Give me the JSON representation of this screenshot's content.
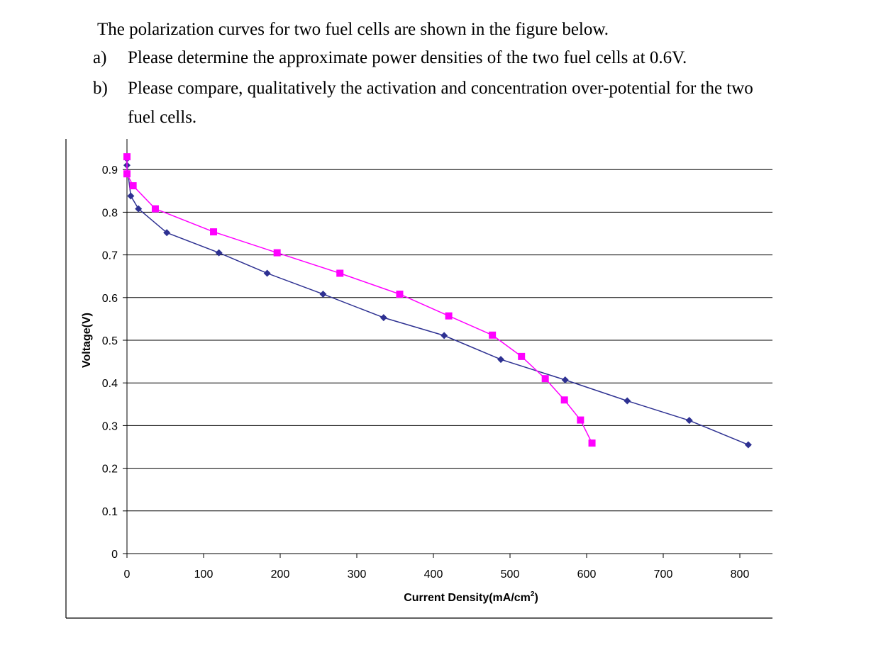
{
  "question": {
    "intro": "The polarization curves for two fuel cells are shown in the figure below.",
    "parts": [
      {
        "label": "a)",
        "text": "Please determine the approximate power densities of the two fuel cells at 0.6V."
      },
      {
        "label": "b)",
        "text": "Please compare, qualitatively the activation and concentration over-potential for the two",
        "continuation": "fuel cells."
      }
    ]
  },
  "chart_data": {
    "type": "line",
    "title": "",
    "xlabel": "Current Density(mA/cm",
    "xlabel_sup": "2",
    "xlabel_suffix": ")",
    "ylabel": "Voltage(V)",
    "xlim": [
      0,
      840
    ],
    "ylim": [
      0,
      0.9
    ],
    "x_ticks": [
      "0",
      "100",
      "200",
      "300",
      "400",
      "500",
      "600",
      "700",
      "800"
    ],
    "y_ticks": [
      "0",
      "0.1",
      "0.2",
      "0.3",
      "0.4",
      "0.5",
      "0.6",
      "0.7",
      "0.8",
      "0.9"
    ],
    "grid": "horizontal",
    "legend": "none",
    "series": [
      {
        "color": "#2E3192",
        "marker": "diamond",
        "points": [
          [
            0,
            0.925
          ],
          [
            0,
            0.91
          ],
          [
            5,
            0.838
          ],
          [
            15,
            0.808
          ],
          [
            52,
            0.752
          ],
          [
            120,
            0.705
          ],
          [
            183,
            0.657
          ],
          [
            256,
            0.608
          ],
          [
            335,
            0.553
          ],
          [
            414,
            0.511
          ],
          [
            488,
            0.455
          ],
          [
            572,
            0.407
          ],
          [
            653,
            0.358
          ],
          [
            734,
            0.312
          ],
          [
            811,
            0.255
          ]
        ]
      },
      {
        "color": "#FF00FF",
        "marker": "square",
        "points": [
          [
            0,
            0.93
          ],
          [
            0,
            0.89
          ],
          [
            8,
            0.862
          ],
          [
            37,
            0.808
          ],
          [
            113,
            0.754
          ],
          [
            196,
            0.705
          ],
          [
            278,
            0.657
          ],
          [
            356,
            0.608
          ],
          [
            420,
            0.557
          ],
          [
            477,
            0.512
          ],
          [
            515,
            0.462
          ],
          [
            546,
            0.41
          ],
          [
            571,
            0.36
          ],
          [
            592,
            0.313
          ],
          [
            607,
            0.259
          ]
        ]
      }
    ]
  }
}
